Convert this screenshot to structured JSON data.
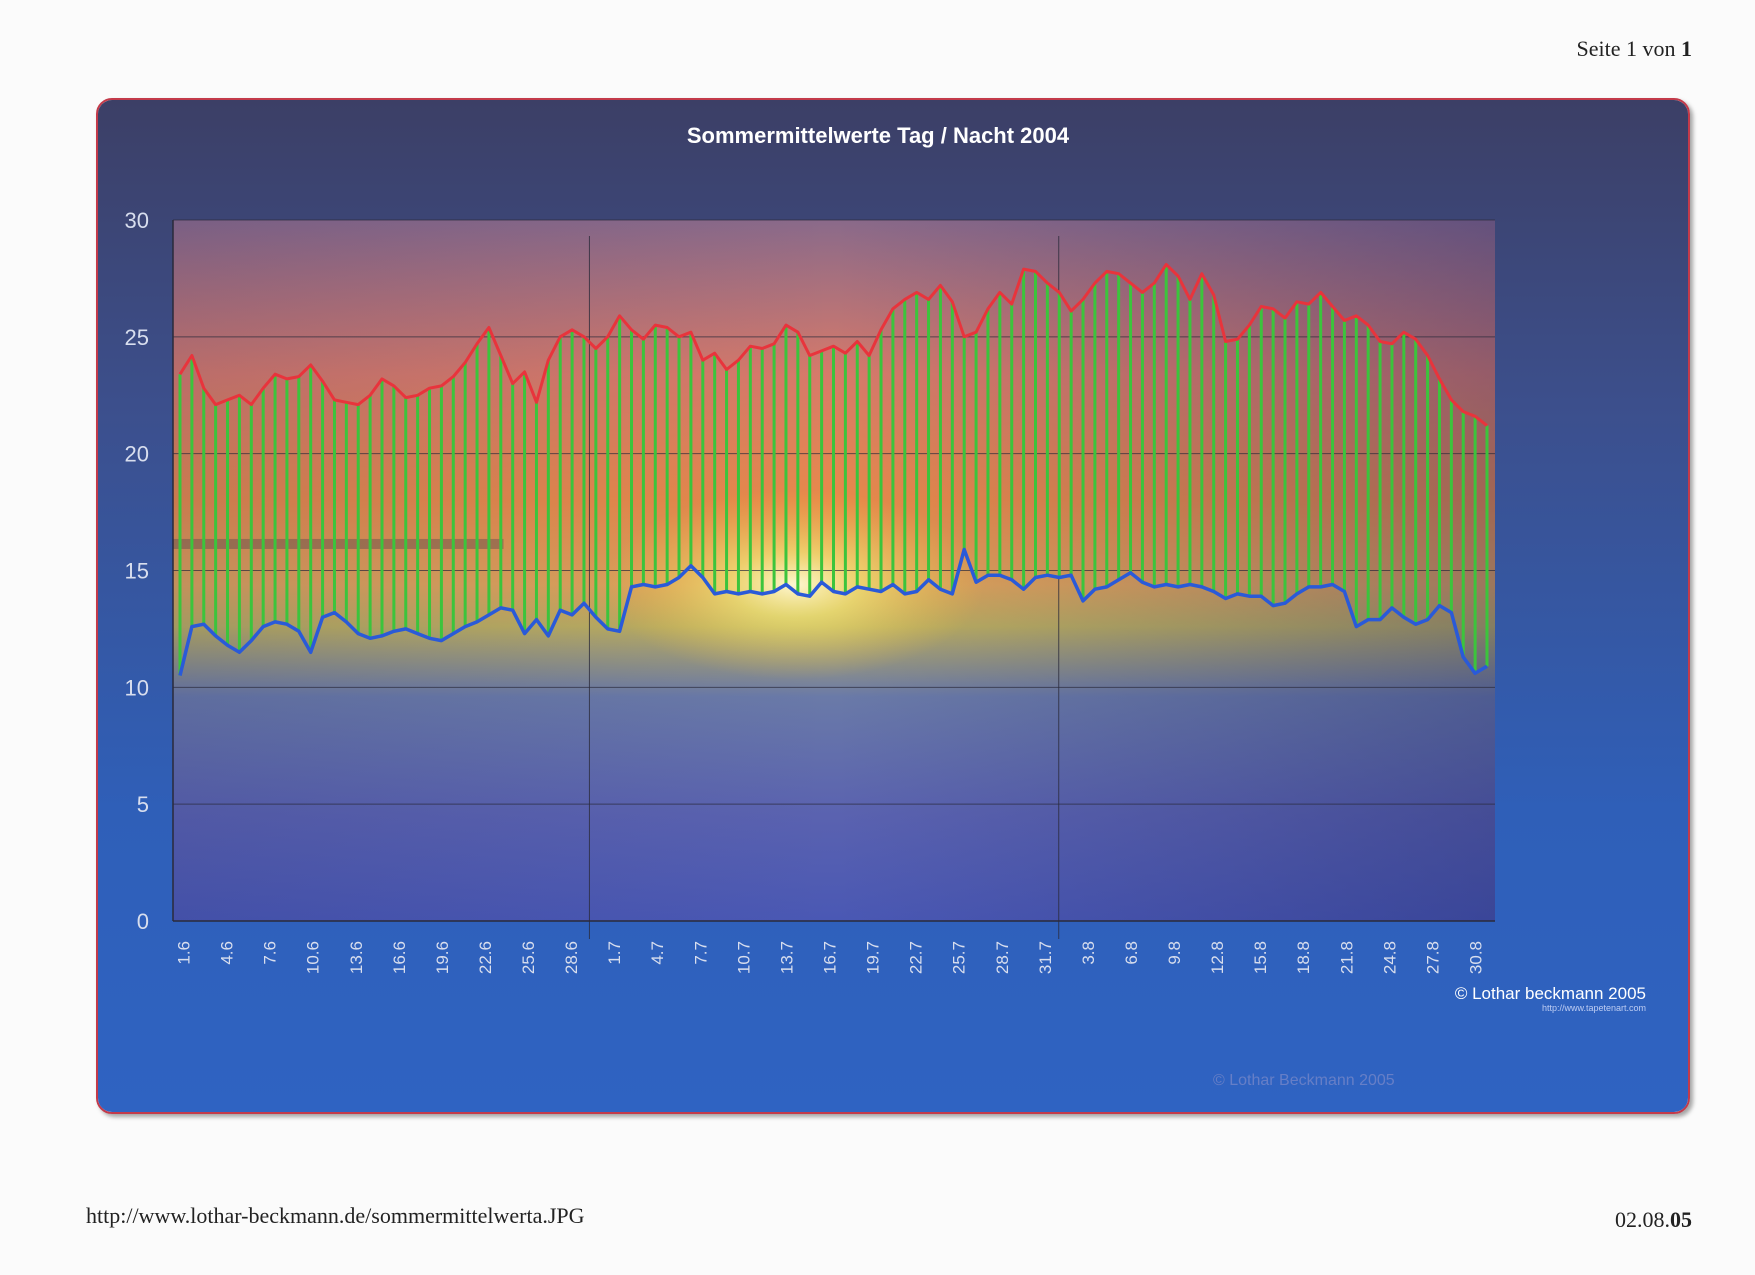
{
  "header": {
    "page_label": "Seite 1 von",
    "page_total": "1"
  },
  "footer": {
    "url": "http://www.lothar-beckmann.de/sommermittelwerta.JPG",
    "date_prefix": "02.08.",
    "date_suffix": "05"
  },
  "watermarks": {
    "main": "© Lothar beckmann 2005",
    "sub": "http://www.tapetenart.com",
    "bottom": "© Lothar Beckmann 2005"
  },
  "colors": {
    "day_line": "#e8343c",
    "night_line": "#2a5ad8",
    "range_bars": "#3cc43c",
    "frame_border": "#c33a4a"
  },
  "chart_data": {
    "type": "line",
    "title": "Sommermittelwerte Tag / Nacht 2004",
    "xlabel": "",
    "ylabel": "",
    "ylim": [
      0,
      30
    ],
    "yticks": [
      0,
      5,
      10,
      15,
      20,
      25,
      30
    ],
    "grid": true,
    "legend": "none",
    "x_tick_labels": [
      "1.6",
      "4.6",
      "7.6",
      "10.6",
      "13.6",
      "16.6",
      "19.6",
      "22.6",
      "25.6",
      "28.6",
      "1.7",
      "4.7",
      "7.7",
      "10.7",
      "13.7",
      "16.7",
      "19.7",
      "22.7",
      "25.7",
      "28.7",
      "31.7",
      "3.8",
      "6.8",
      "9.8",
      "12.8",
      "15.8",
      "18.8",
      "21.8",
      "24.8",
      "27.8",
      "30.8"
    ],
    "series": [
      {
        "role": "day",
        "values": [
          23.4,
          24.2,
          22.8,
          22.1,
          22.3,
          22.5,
          22.1,
          22.8,
          23.4,
          23.2,
          23.3,
          23.8,
          23.1,
          22.3,
          22.2,
          22.1,
          22.5,
          23.2,
          22.9,
          22.4,
          22.5,
          22.8,
          22.9,
          23.3,
          23.9,
          24.7,
          25.4,
          24.2,
          23.0,
          23.5,
          22.2,
          24.0,
          25.0,
          25.3,
          25.0,
          24.5,
          25.0,
          25.9,
          25.3,
          24.9,
          25.5,
          25.4,
          25.0,
          25.2,
          24.0,
          24.3,
          23.6,
          24.0,
          24.6,
          24.5,
          24.7,
          25.5,
          25.2,
          24.2,
          24.4,
          24.6,
          24.3,
          24.8,
          24.2,
          25.3,
          26.2,
          26.6,
          26.9,
          26.6,
          27.2,
          26.5,
          25.0,
          25.2,
          26.2,
          26.9,
          26.4,
          27.9,
          27.8,
          27.3,
          26.9,
          26.1,
          26.6,
          27.3,
          27.8,
          27.7,
          27.3,
          26.9,
          27.3,
          28.1,
          27.6,
          26.6,
          27.7,
          26.8,
          24.8,
          24.9,
          25.5,
          26.3,
          26.2,
          25.8,
          26.5,
          26.4,
          26.9,
          26.3,
          25.7,
          25.9,
          25.5,
          24.8,
          24.7,
          25.2,
          24.9,
          24.2,
          23.2,
          22.3,
          21.8,
          21.6,
          21.2
        ]
      },
      {
        "role": "night",
        "values": [
          10.5,
          12.6,
          12.7,
          12.2,
          11.8,
          11.5,
          12.0,
          12.6,
          12.8,
          12.7,
          12.4,
          11.5,
          13.0,
          13.2,
          12.8,
          12.3,
          12.1,
          12.2,
          12.4,
          12.5,
          12.3,
          12.1,
          12.0,
          12.3,
          12.6,
          12.8,
          13.1,
          13.4,
          13.3,
          12.3,
          12.9,
          12.2,
          13.3,
          13.1,
          13.6,
          13.0,
          12.5,
          12.4,
          14.3,
          14.4,
          14.3,
          14.4,
          14.7,
          15.2,
          14.7,
          14.0,
          14.1,
          14.0,
          14.1,
          14.0,
          14.1,
          14.4,
          14.0,
          13.9,
          14.5,
          14.1,
          14.0,
          14.3,
          14.2,
          14.1,
          14.4,
          14.0,
          14.1,
          14.6,
          14.2,
          14.0,
          15.9,
          14.5,
          14.8,
          14.8,
          14.6,
          14.2,
          14.7,
          14.8,
          14.7,
          14.8,
          13.7,
          14.2,
          14.3,
          14.6,
          14.9,
          14.5,
          14.3,
          14.4,
          14.3,
          14.4,
          14.3,
          14.1,
          13.8,
          14.0,
          13.9,
          13.9,
          13.5,
          13.6,
          14.0,
          14.3,
          14.3,
          14.4,
          14.1,
          12.6,
          12.9,
          12.9,
          13.4,
          13.0,
          12.7,
          12.9,
          13.5,
          13.2,
          11.3,
          10.6,
          10.9
        ]
      }
    ]
  }
}
